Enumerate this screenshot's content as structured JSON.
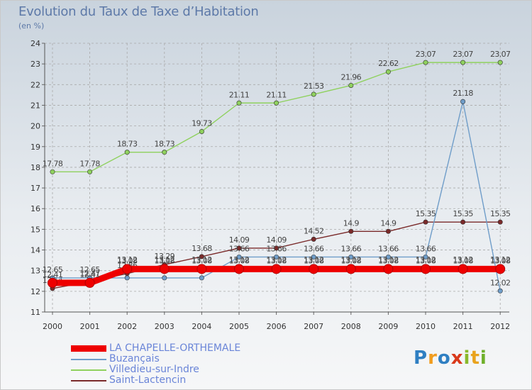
{
  "title": "Evolution du Taux de Taxe d’Habitation",
  "subtitle": "(en %)",
  "chart_data": {
    "type": "line",
    "x": [
      "2000",
      "2001",
      "2002",
      "2003",
      "2004",
      "2005",
      "2006",
      "2007",
      "2008",
      "2009",
      "2010",
      "2011",
      "2012"
    ],
    "ylim": [
      11,
      24
    ],
    "yticks": [
      11,
      12,
      13,
      14,
      15,
      16,
      17,
      18,
      19,
      20,
      21,
      22,
      23,
      24
    ],
    "grid": true,
    "legend_position": "bottom-left",
    "series": [
      {
        "name": "LA CHAPELLE-ORTHEMALE",
        "color": "#ee0000",
        "values": [
          12.41,
          12.41,
          13.08,
          13.08,
          13.08,
          13.08,
          13.08,
          13.08,
          13.08,
          13.08,
          13.08,
          13.08,
          13.08
        ],
        "labels": [
          "12.41",
          "12.41",
          "13.08",
          "13.08",
          "13.08",
          "13.08",
          "13.08",
          "13.08",
          "13.08",
          "13.08",
          "13.08",
          "13.08",
          "13.08"
        ]
      },
      {
        "name": "Buzançais",
        "color": "#6f9dc9",
        "values": [
          12.65,
          12.65,
          12.65,
          12.65,
          12.65,
          13.66,
          13.66,
          13.66,
          13.66,
          13.66,
          13.66,
          21.18,
          12.02
        ],
        "labels": [
          "12.65",
          "12.65",
          "",
          "",
          "",
          "13.66",
          "13.66",
          "13.66",
          "13.66",
          "13.66",
          "13.66",
          "21.18",
          "12.02"
        ]
      },
      {
        "name": "Villedieu-sur-Indre",
        "color": "#8fd15e",
        "values": [
          17.78,
          17.78,
          18.73,
          18.73,
          19.73,
          21.11,
          21.11,
          21.53,
          21.96,
          22.62,
          23.07,
          23.07,
          23.07
        ],
        "labels": [
          "17.78",
          "17.78",
          "18.73",
          "18.73",
          "19.73",
          "21.11",
          "21.11",
          "21.53",
          "21.96",
          "22.62",
          "23.07",
          "23.07",
          "23.07"
        ]
      },
      {
        "name": "Saint-Lactencin",
        "color": "#7a2a2a",
        "values": [
          12.14,
          12.47,
          12.86,
          13.29,
          13.68,
          14.09,
          14.09,
          14.52,
          14.9,
          14.9,
          15.35,
          15.35,
          15.35
        ],
        "labels": [
          "12.14",
          "12.47",
          "12.86",
          "13.29",
          "13.68",
          "14.09",
          "14.09",
          "14.52",
          "14.9",
          "14.9",
          "15.35",
          "15.35",
          "15.35"
        ]
      },
      {
        "name": "",
        "color": "#6f9dc9",
        "values": [
          null,
          null,
          13.12,
          13.12,
          13.12,
          13.12,
          13.12,
          13.12,
          13.12,
          13.12,
          13.12,
          13.12,
          13.12
        ],
        "labels": [
          "",
          "",
          "13.12",
          "13.12",
          "13.12",
          "13.12",
          "13.12",
          "13.12",
          "13.12",
          "13.12",
          "13.12",
          "13.12",
          "13.12"
        ],
        "hidden_line": true
      }
    ]
  },
  "logo": {
    "letters": [
      "P",
      "r",
      "o",
      "x",
      "i",
      "t",
      "i"
    ]
  }
}
